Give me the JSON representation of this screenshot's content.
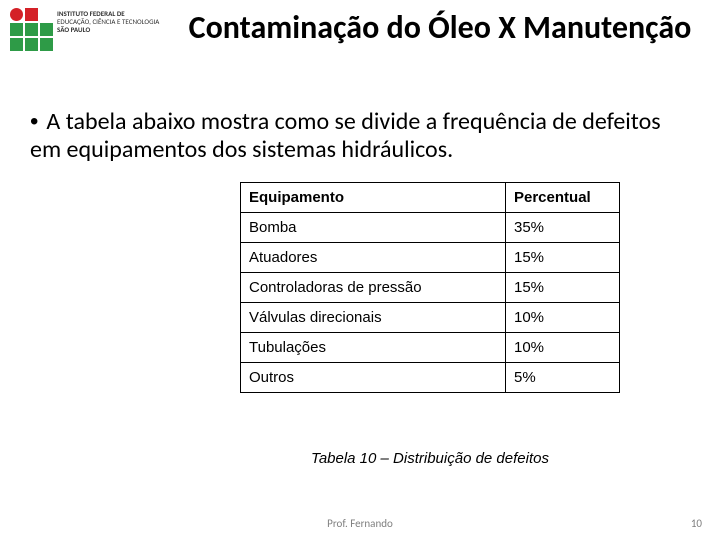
{
  "logo": {
    "colors": [
      "#d42127",
      "#d42127",
      "#2e9b47",
      "#2e9b47",
      "#2e9b47",
      "#2e9b47",
      "#2e9b47",
      "#2e9b47",
      "#2e9b47"
    ],
    "line1": "INSTITUTO FEDERAL DE",
    "line2": "EDUCAÇÃO, CIÊNCIA E TECNOLOGIA",
    "line3": "SÃO PAULO"
  },
  "title": "Contaminação do Óleo X Manutenção",
  "bullet": "A tabela abaixo mostra como se divide a frequência de defeitos em equipamentos dos sistemas hidráulicos.",
  "table": {
    "header": {
      "a": "Equipamento",
      "b": "Percentual"
    },
    "rows": [
      {
        "a": "Bomba",
        "b": "35%"
      },
      {
        "a": "Atuadores",
        "b": "15%"
      },
      {
        "a": "Controladoras de pressão",
        "b": "15%"
      },
      {
        "a": "Válvulas direcionais",
        "b": "10%"
      },
      {
        "a": "Tubulações",
        "b": "10%"
      },
      {
        "a": "Outros",
        "b": "5%"
      }
    ],
    "caption": "Tabela 10 – Distribuição de defeitos"
  },
  "footer": {
    "author": "Prof. Fernando",
    "page": "10"
  }
}
